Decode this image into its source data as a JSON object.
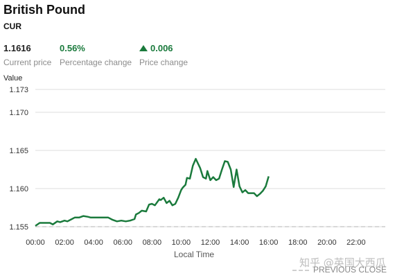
{
  "header": {
    "title": "British Pound",
    "subtitle": "CUR"
  },
  "stats": {
    "current_price": "1.1616",
    "current_price_label": "Current price",
    "percentage_change": "0.56%",
    "percentage_change_label": "Percentage change",
    "price_change": "0.006",
    "price_change_label": "Price change",
    "price_change_direction_icon": "triangle-up-icon"
  },
  "watermark": "知乎 @英国大西瓜",
  "legend": {
    "previous_close_label": "PREVIOUS CLOSE"
  },
  "colors": {
    "line": "#1a7a3c",
    "positive": "#1a7a3c",
    "grid": "#dddddd",
    "previous_close": "#cccccc"
  },
  "chart_data": {
    "type": "line",
    "ylabel": "Value",
    "xlabel": "Local Time",
    "ylim": [
      1.155,
      1.173
    ],
    "y_ticks": [
      "1.155",
      "1.160",
      "1.165",
      "1.170",
      "1.173"
    ],
    "x_range_hours": [
      0,
      24
    ],
    "x_ticks": [
      "00:00",
      "02:00",
      "04:00",
      "06:00",
      "08:00",
      "10:00",
      "12:00",
      "14:00",
      "16:00",
      "18:00",
      "20:00",
      "22:00"
    ],
    "previous_close": 1.155,
    "grid": true,
    "series": [
      {
        "x": [
          0.0,
          0.3,
          0.6,
          1.0,
          1.2,
          1.5,
          1.7,
          2.0,
          2.2,
          2.5,
          2.7,
          3.0,
          3.3,
          3.6,
          3.8,
          4.2,
          4.6,
          5.0,
          5.3,
          5.6,
          5.9,
          6.2,
          6.5,
          6.8,
          6.9,
          7.1,
          7.3,
          7.6,
          7.8,
          8.0,
          8.2,
          8.5,
          8.6,
          8.8,
          9.0,
          9.2,
          9.4,
          9.6,
          9.8,
          10.0,
          10.1,
          10.3,
          10.4,
          10.6,
          10.8,
          11.0,
          11.1,
          11.3,
          11.5,
          11.7,
          11.8,
          12.0,
          12.2,
          12.4,
          12.6,
          12.8,
          13.0,
          13.2,
          13.4,
          13.6,
          13.8,
          14.0,
          14.2,
          14.4,
          14.6,
          14.8,
          15.0,
          15.2,
          15.4,
          15.6,
          15.8,
          16.0
        ],
        "y": [
          1.1551,
          1.1555,
          1.1555,
          1.1555,
          1.1553,
          1.1557,
          1.1556,
          1.1558,
          1.1557,
          1.156,
          1.1562,
          1.1562,
          1.1564,
          1.1563,
          1.1562,
          1.1562,
          1.1562,
          1.1562,
          1.1559,
          1.1557,
          1.1558,
          1.1557,
          1.1558,
          1.156,
          1.1566,
          1.1568,
          1.1571,
          1.157,
          1.1579,
          1.158,
          1.1578,
          1.1586,
          1.1585,
          1.1588,
          1.1581,
          1.1584,
          1.1578,
          1.158,
          1.1588,
          1.1598,
          1.1601,
          1.1605,
          1.1614,
          1.1613,
          1.163,
          1.1639,
          1.1635,
          1.1627,
          1.1615,
          1.1613,
          1.1623,
          1.1611,
          1.1615,
          1.1611,
          1.1613,
          1.1625,
          1.1636,
          1.1635,
          1.1625,
          1.1602,
          1.1625,
          1.1603,
          1.1595,
          1.1598,
          1.1594,
          1.1594,
          1.1594,
          1.159,
          1.1593,
          1.1597,
          1.1603,
          1.1616
        ]
      }
    ]
  }
}
